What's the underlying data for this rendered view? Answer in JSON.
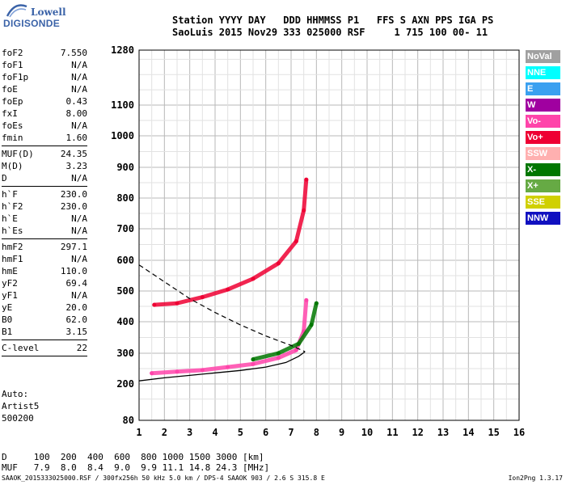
{
  "logo": {
    "line1": "Lowell",
    "line2": "DIGISONDE"
  },
  "header": {
    "row1": "Station YYYY DAY   DDD HHMMSS P1   FFS S AXN PPS IGA PS",
    "row2": "SaoLuis 2015 Nov29 333 025000 RSF     1 715 100 00- 11"
  },
  "params_group1": [
    {
      "key": "foF2",
      "value": "7.550"
    },
    {
      "key": "foF1",
      "value": "N/A"
    },
    {
      "key": "foF1p",
      "value": "N/A"
    },
    {
      "key": "foE",
      "value": "N/A"
    },
    {
      "key": "foEp",
      "value": "0.43"
    },
    {
      "key": "fxI",
      "value": "8.00"
    },
    {
      "key": "foEs",
      "value": "N/A"
    },
    {
      "key": "fmin",
      "value": "1.60"
    }
  ],
  "params_group2": [
    {
      "key": "MUF(D)",
      "value": "24.35"
    },
    {
      "key": "M(D)",
      "value": "3.23"
    },
    {
      "key": "D",
      "value": "N/A"
    }
  ],
  "params_group3": [
    {
      "key": "h`F",
      "value": "230.0"
    },
    {
      "key": "h`F2",
      "value": "230.0"
    },
    {
      "key": "h`E",
      "value": "N/A"
    },
    {
      "key": "h`Es",
      "value": "N/A"
    }
  ],
  "params_group4": [
    {
      "key": "hmF2",
      "value": "297.1"
    },
    {
      "key": "hmF1",
      "value": "N/A"
    },
    {
      "key": "hmE",
      "value": "110.0"
    },
    {
      "key": "yF2",
      "value": "69.4"
    },
    {
      "key": "yF1",
      "value": "N/A"
    },
    {
      "key": "yE",
      "value": "20.0"
    },
    {
      "key": "B0",
      "value": "62.0"
    },
    {
      "key": "B1",
      "value": "3.15"
    }
  ],
  "params_group5": [
    {
      "key": "C-level",
      "value": "22"
    }
  ],
  "auto": {
    "line1": "Auto:",
    "line2": "Artist5",
    "line3": "500200"
  },
  "dtable": {
    "row1": "D     100  200  400  600  800 1000 1500 3000 [km]",
    "row2": "MUF   7.9  8.0  8.4  9.0  9.9 11.1 14.8 24.3 [MHz]"
  },
  "footer": {
    "left": "SAAOK_2015333025000.RSF / 300fx256h 50 kHz 5.0 km / DPS-4 SAAOK 903 / 2.6 S 315.8 E",
    "right": "Ion2Png 1.3.17"
  },
  "legend": [
    {
      "label": "NoVal",
      "color": "#a0a0a0"
    },
    {
      "label": "NNE",
      "color": "#00ffff"
    },
    {
      "label": "E",
      "color": "#3aa0f0"
    },
    {
      "label": "W",
      "color": "#a000a0"
    },
    {
      "label": "Vo-",
      "color": "#ff44aa"
    },
    {
      "label": "Vo+",
      "color": "#ee0033"
    },
    {
      "label": "SSW",
      "color": "#ffb0b0"
    },
    {
      "label": "X-",
      "color": "#007700"
    },
    {
      "label": "X+",
      "color": "#66aa44"
    },
    {
      "label": "SSE",
      "color": "#d0d000"
    },
    {
      "label": "NNW",
      "color": "#1010c0"
    }
  ],
  "chart_data": {
    "type": "scatter",
    "xlabel": "",
    "ylabel": "",
    "xlim": [
      1,
      16
    ],
    "x_ticks": [
      1,
      2,
      3,
      4,
      5,
      6,
      7,
      8,
      9,
      10,
      11,
      12,
      13,
      14,
      15,
      16
    ],
    "y_ticks": [
      80,
      200,
      300,
      400,
      500,
      600,
      700,
      800,
      900,
      1000,
      1100,
      1280
    ],
    "y_scale": "nonlinear",
    "grid": true,
    "traces": [
      {
        "name": "Vo+",
        "color": "#ee0033",
        "points": [
          [
            1.6,
            455
          ],
          [
            2.5,
            460
          ],
          [
            3.5,
            480
          ],
          [
            4.5,
            505
          ],
          [
            5.5,
            540
          ],
          [
            6.5,
            590
          ],
          [
            7.2,
            660
          ],
          [
            7.5,
            760
          ],
          [
            7.6,
            860
          ]
        ]
      },
      {
        "name": "Vo-",
        "color": "#ff44aa",
        "points": [
          [
            1.5,
            235
          ],
          [
            2.5,
            240
          ],
          [
            3.5,
            245
          ],
          [
            4.5,
            255
          ],
          [
            5.5,
            265
          ],
          [
            6.5,
            285
          ],
          [
            7.2,
            310
          ],
          [
            7.5,
            370
          ],
          [
            7.6,
            470
          ]
        ]
      },
      {
        "name": "X-",
        "color": "#007700",
        "points": [
          [
            5.5,
            280
          ],
          [
            6.5,
            300
          ],
          [
            7.3,
            330
          ],
          [
            7.8,
            390
          ],
          [
            8.0,
            460
          ]
        ]
      }
    ],
    "model_profile": {
      "color": "#000",
      "points": [
        [
          1,
          210
        ],
        [
          2,
          220
        ],
        [
          3,
          228
        ],
        [
          4,
          236
        ],
        [
          5,
          244
        ],
        [
          6,
          255
        ],
        [
          6.8,
          270
        ],
        [
          7.3,
          290
        ],
        [
          7.55,
          305
        ]
      ]
    },
    "model_dashed": {
      "color": "#000",
      "points": [
        [
          1,
          585
        ],
        [
          2,
          530
        ],
        [
          3,
          475
        ],
        [
          4,
          430
        ],
        [
          5,
          390
        ],
        [
          6,
          355
        ],
        [
          7,
          325
        ],
        [
          7.55,
          305
        ]
      ]
    }
  }
}
